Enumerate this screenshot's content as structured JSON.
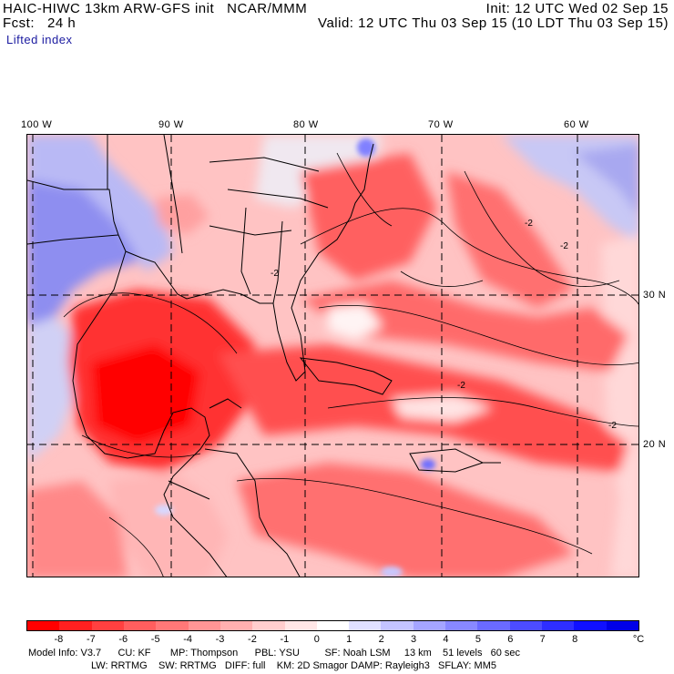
{
  "header": {
    "line1_left": "HAIC-HIWC 13km ARW-GFS init   NCAR/MMM",
    "line1_right": "Init: 12 UTC Wed 02 Sep 15",
    "line2_left": "Fcst:   24 h",
    "line2_right": "Valid: 12 UTC Thu 03 Sep 15 (10 LDT Thu 03 Sep 15)",
    "field": "Lifted index"
  },
  "axes": {
    "lon_labels": [
      "100 W",
      "90 W",
      "80 W",
      "70 W",
      "60 W"
    ],
    "lat_labels": [
      "30 N",
      "20 N"
    ]
  },
  "contour_label": "-2",
  "colorbar": {
    "colors": [
      "#ff0000",
      "#ff2020",
      "#ff4040",
      "#ff5e5e",
      "#ff7878",
      "#ff9595",
      "#ffb0b0",
      "#ffcece",
      "#ffe7e7",
      "#ffffff",
      "#e0e0ff",
      "#c4c4ff",
      "#a5a5ff",
      "#8888ff",
      "#6a6aff",
      "#4c4cff",
      "#2e2eff",
      "#1010ff",
      "#0000e8"
    ],
    "labels": [
      "-8",
      "-7",
      "-6",
      "-5",
      "-4",
      "-3",
      "-2",
      "-1",
      "0",
      "1",
      "2",
      "3",
      "4",
      "5",
      "6",
      "7",
      "8"
    ],
    "unit": "°C"
  },
  "footer": {
    "line1": "Model Info: V3.7      CU: KF       MP: Thompson      PBL: YSU         SF: Noah LSM     13 km    51 levels   60 sec",
    "line2": "LW: RRTMG    SW: RRTMG   DIFF: full    KM: 2D Smagor DAMP: Rayleigh3   SFLAY: MM5"
  }
}
